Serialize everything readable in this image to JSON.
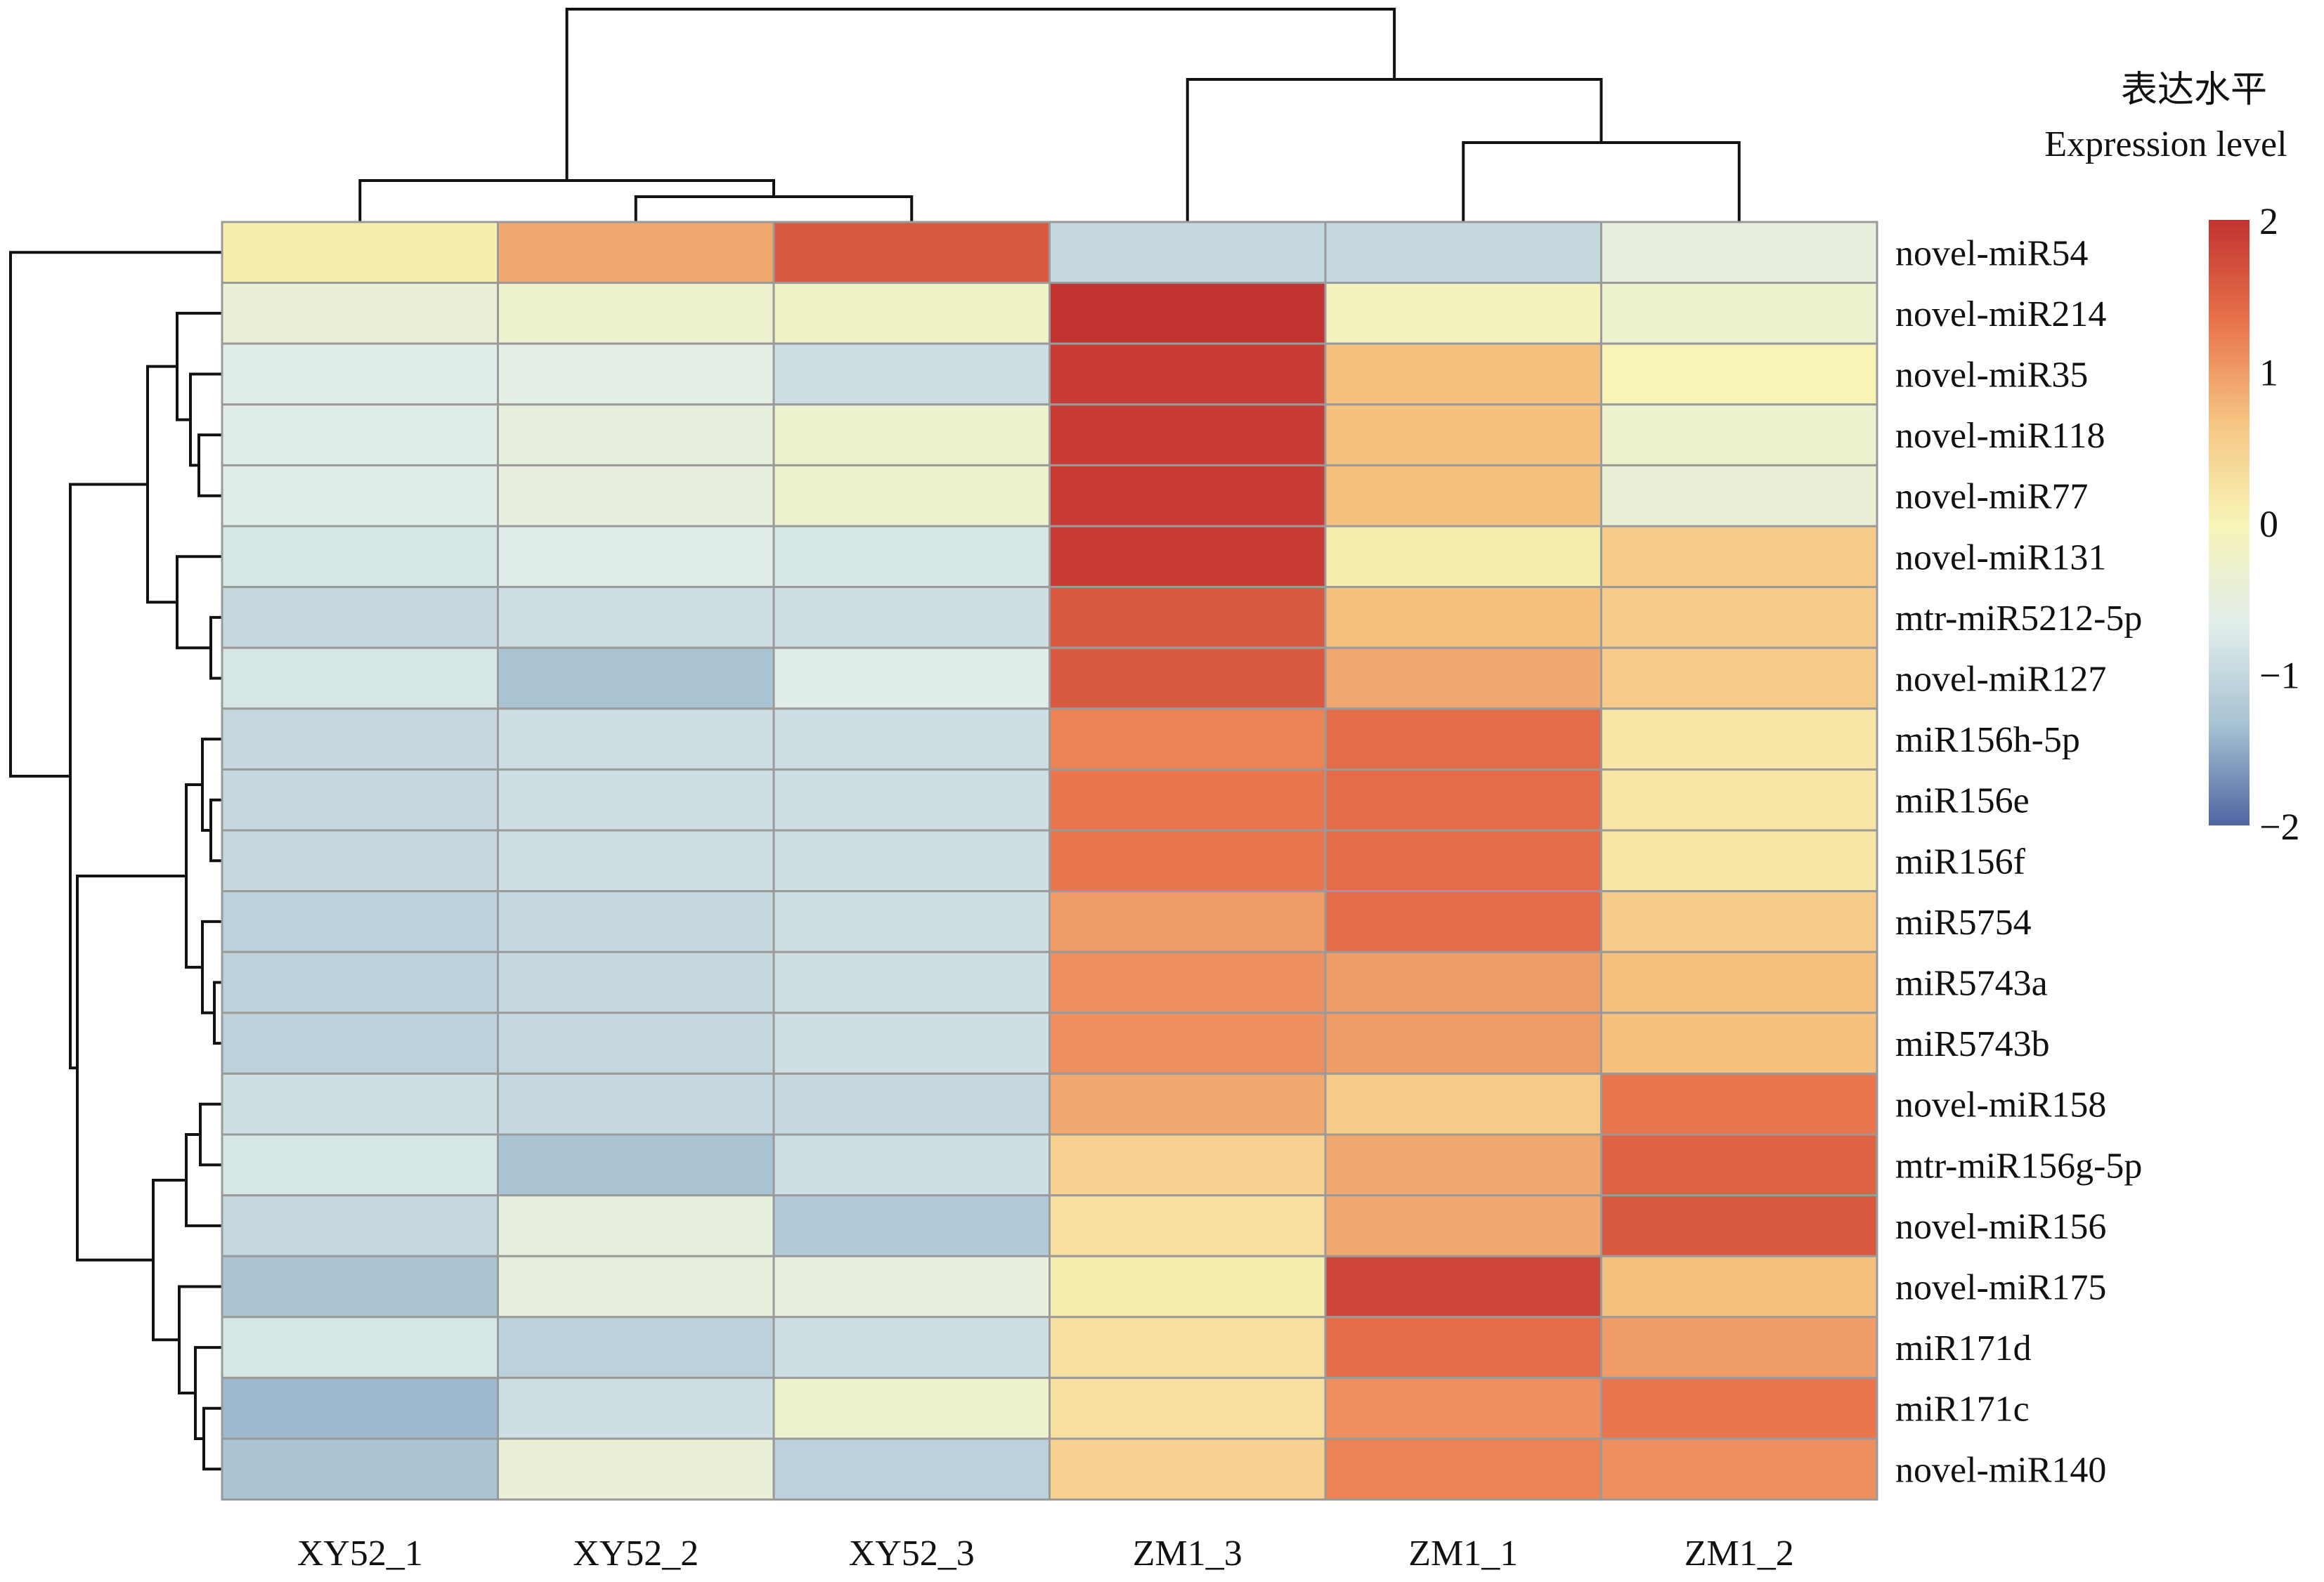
{
  "chart_data": {
    "type": "heatmap",
    "title": "",
    "columns": [
      "XY52_1",
      "XY52_2",
      "XY52_3",
      "ZM1_3",
      "ZM1_1",
      "ZM1_2"
    ],
    "rows": [
      "novel-miR54",
      "novel-miR214",
      "novel-miR35",
      "novel-miR118",
      "novel-miR77",
      "novel-miR131",
      "mtr-miR5212-5p",
      "novel-miR127",
      "miR156h-5p",
      "miR156e",
      "miR156f",
      "miR5754",
      "miR5743a",
      "miR5743b",
      "novel-miR158",
      "mtr-miR156g-5p",
      "novel-miR156",
      "novel-miR175",
      "miR171d",
      "miR171c",
      "novel-miR140"
    ],
    "values": [
      [
        0.1,
        0.9,
        1.6,
        -1.0,
        -1.0,
        -0.5
      ],
      [
        -0.4,
        -0.3,
        -0.2,
        2.0,
        -0.1,
        -0.3
      ],
      [
        -0.7,
        -0.6,
        -0.9,
        1.9,
        0.7,
        0.0
      ],
      [
        -0.7,
        -0.5,
        -0.3,
        1.9,
        0.7,
        -0.3
      ],
      [
        -0.7,
        -0.5,
        -0.3,
        1.9,
        0.7,
        -0.4
      ],
      [
        -0.8,
        -0.7,
        -0.8,
        1.9,
        0.1,
        0.6
      ],
      [
        -1.0,
        -0.9,
        -0.9,
        1.6,
        0.7,
        0.6
      ],
      [
        -0.8,
        -1.3,
        -0.7,
        1.6,
        0.9,
        0.6
      ],
      [
        -1.0,
        -0.9,
        -0.9,
        1.2,
        1.4,
        0.2
      ],
      [
        -1.0,
        -0.9,
        -0.9,
        1.3,
        1.4,
        0.2
      ],
      [
        -1.0,
        -0.9,
        -0.9,
        1.3,
        1.4,
        0.2
      ],
      [
        -1.1,
        -1.0,
        -0.9,
        1.0,
        1.4,
        0.6
      ],
      [
        -1.1,
        -1.0,
        -0.9,
        1.1,
        1.0,
        0.7
      ],
      [
        -1.1,
        -1.0,
        -0.9,
        1.1,
        1.0,
        0.7
      ],
      [
        -0.9,
        -1.0,
        -1.0,
        0.9,
        0.6,
        1.3
      ],
      [
        -0.8,
        -1.3,
        -0.9,
        0.5,
        0.9,
        1.5
      ],
      [
        -1.0,
        -0.5,
        -1.2,
        0.3,
        0.9,
        1.6
      ],
      [
        -1.3,
        -0.5,
        -0.5,
        0.1,
        1.8,
        0.7
      ],
      [
        -0.8,
        -1.1,
        -0.9,
        0.3,
        1.4,
        1.0
      ],
      [
        -1.4,
        -0.9,
        -0.3,
        0.3,
        1.1,
        1.3
      ],
      [
        -1.3,
        -0.4,
        -1.1,
        0.5,
        1.2,
        1.1
      ]
    ],
    "legend": {
      "title_cn": "表达水平",
      "title_en": "Expression level",
      "ticks": [
        "2",
        "1",
        "0",
        "−1",
        "−2"
      ],
      "range": [
        -2,
        2
      ],
      "placement": "right",
      "colors": [
        "#4F65A2",
        "#A7C2D3",
        "#E2EEEB",
        "#F7F4B6",
        "#F6C582",
        "#E8724A",
        "#C23331"
      ]
    },
    "row_dendrogram": true,
    "column_dendrogram": true,
    "grid_line_color": "#9A9A9A"
  }
}
